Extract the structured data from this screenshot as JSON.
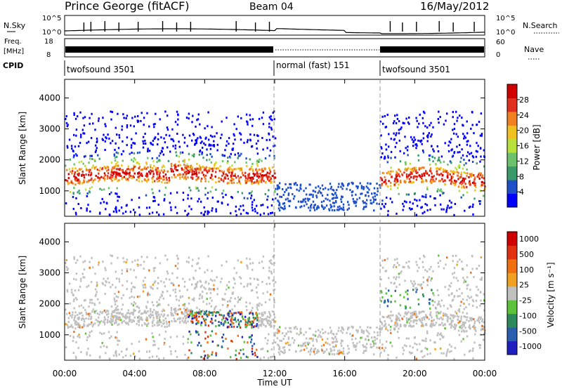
{
  "header": {
    "station": "Prince George (fitACF)",
    "beam": "Beam 04",
    "date": "16/May/2012"
  },
  "colors": {
    "power": [
      "#0000ff",
      "#1f4fc8",
      "#3a9a6a",
      "#6bc26b",
      "#b8e03a",
      "#f0c020",
      "#f08020",
      "#e03020",
      "#d00000"
    ],
    "velocity": [
      "#2020c0",
      "#2a5fb0",
      "#2e8a5a",
      "#5cc23a",
      "#c0c0c0",
      "#f0a020",
      "#f07010",
      "#e03010",
      "#d00000"
    ]
  },
  "chart_data": [
    {
      "type": "line",
      "name_label": "N.Sky",
      "right_label": "N.Search",
      "ytick_labels_left": [
        "10^5",
        "10^0"
      ],
      "ytick_labels_right": [
        "10^5",
        "10^0"
      ]
    },
    {
      "type": "bar",
      "name_label_top": "Freq.",
      "name_label_unit": "[MHz]",
      "right_label": "Nave",
      "ytick_labels_left": [
        "18",
        "8"
      ],
      "ytick_labels_right": [
        "60",
        "0"
      ]
    },
    {
      "type": "table",
      "label": "CPID",
      "segments": [
        {
          "start": 0,
          "end": 12,
          "text": "twofsound 3501"
        },
        {
          "start": 12,
          "end": 18,
          "text": "normal (fast) 151"
        },
        {
          "start": 18,
          "end": 24,
          "text": "twofsound 3501"
        }
      ]
    },
    {
      "type": "heatmap",
      "ylabel": "Slant Range [km]",
      "yticks": [
        1000,
        2000,
        3000,
        4000
      ],
      "ylim": [
        180,
        4600
      ],
      "colorbar_label": "Power [dB]",
      "colorbar_ticks": [
        4,
        8,
        12,
        16,
        20,
        24,
        28
      ],
      "colorbar_range": [
        0,
        32
      ]
    },
    {
      "type": "heatmap",
      "ylabel": "Slant Range [km]",
      "yticks": [
        1000,
        2000,
        3000,
        4000
      ],
      "ylim": [
        180,
        4600
      ],
      "colorbar_label": "Velocity [m s⁻¹]",
      "colorbar_ticks": [
        "1000",
        "500",
        "100",
        "25",
        "-25",
        "-100",
        "-500",
        "-1000"
      ],
      "xlabel": "Time UT",
      "xticks": [
        "00:00",
        "04:00",
        "08:00",
        "12:00",
        "16:00",
        "20:00",
        "00:00"
      ],
      "xlim": [
        0,
        24
      ]
    }
  ]
}
